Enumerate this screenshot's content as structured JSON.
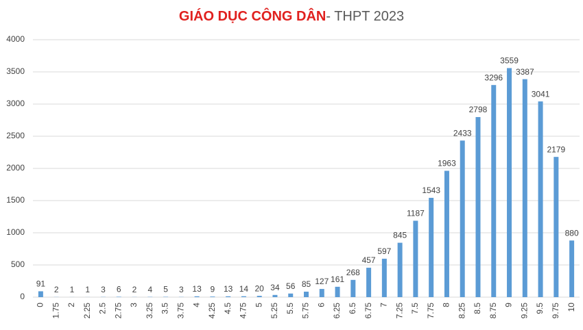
{
  "chart_data": {
    "type": "bar",
    "title_parts": [
      "GIÁO DỤC CÔNG DÂN",
      "- THPT 2023"
    ],
    "categories": [
      "0",
      "1.75",
      "2",
      "2.25",
      "2.5",
      "2.75",
      "3",
      "3.25",
      "3.5",
      "3.75",
      "4",
      "4.25",
      "4.5",
      "4.75",
      "5",
      "5.25",
      "5.5",
      "5.75",
      "6",
      "6.25",
      "6.5",
      "6.75",
      "7",
      "7.25",
      "7.5",
      "7.75",
      "8",
      "8.25",
      "8.5",
      "8.75",
      "9",
      "9.25",
      "9.5",
      "9.75",
      "10"
    ],
    "values": [
      91,
      2,
      1,
      1,
      3,
      6,
      2,
      4,
      5,
      3,
      13,
      9,
      13,
      14,
      20,
      34,
      56,
      85,
      127,
      161,
      268,
      457,
      597,
      845,
      1187,
      1543,
      1963,
      2433,
      2798,
      3296,
      3559,
      3387,
      3041,
      2179,
      880
    ],
    "color": "#5b9bd5",
    "ylim": [
      0,
      4000
    ],
    "yticks": [
      0,
      500,
      1000,
      1500,
      2000,
      2500,
      3000,
      3500,
      4000
    ],
    "grid": true
  }
}
